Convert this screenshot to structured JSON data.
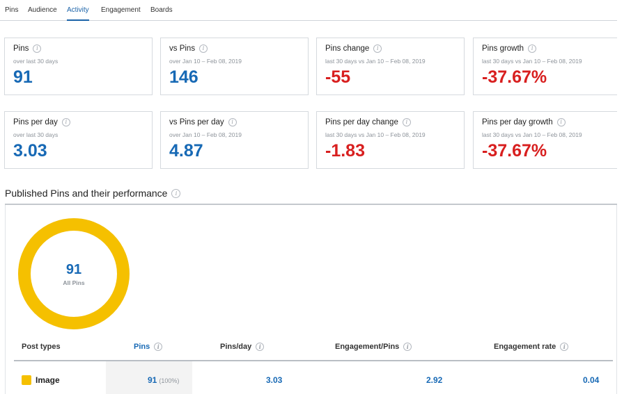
{
  "tabs": [
    {
      "label": "Pins",
      "active": false
    },
    {
      "label": "Audience",
      "active": false
    },
    {
      "label": "Activity",
      "active": true
    },
    {
      "label": "Engagement",
      "active": false
    },
    {
      "label": "Boards",
      "active": false
    }
  ],
  "cards_row1": [
    {
      "title": "Pins",
      "sub": "over last 30 days",
      "value": "91",
      "tone": "blue"
    },
    {
      "title": "vs Pins",
      "sub": "over Jan 10 – Feb 08, 2019",
      "value": "146",
      "tone": "blue"
    },
    {
      "title": "Pins change",
      "sub": "last 30 days vs Jan 10 – Feb 08, 2019",
      "value": "-55",
      "tone": "red"
    },
    {
      "title": "Pins growth",
      "sub": "last 30 days vs Jan 10 – Feb 08, 2019",
      "value": "-37.67%",
      "tone": "red"
    }
  ],
  "cards_row2": [
    {
      "title": "Pins per day",
      "sub": "over last 30 days",
      "value": "3.03",
      "tone": "blue"
    },
    {
      "title": "vs Pins per day",
      "sub": "over Jan 10 – Feb 08, 2019",
      "value": "4.87",
      "tone": "blue"
    },
    {
      "title": "Pins per day change",
      "sub": "last 30 days vs Jan 10 – Feb 08, 2019",
      "value": "-1.83",
      "tone": "red"
    },
    {
      "title": "Pins per day growth",
      "sub": "last 30 days vs Jan 10 – Feb 08, 2019",
      "value": "-37.67%",
      "tone": "red"
    }
  ],
  "info_glyph": "i",
  "section": {
    "title": "Published Pins and their performance"
  },
  "donut": {
    "value": "91",
    "label": "All Pins",
    "color": "#f5c000",
    "share": 1.0
  },
  "table": {
    "headers": {
      "post_types": "Post types",
      "pins": "Pins",
      "pins_day": "Pins/day",
      "engagement_pins": "Engagement/Pins",
      "engagement_rate": "Engagement rate"
    },
    "rows": [
      {
        "type": "Image",
        "pins": "91",
        "pins_pct": "(100%)",
        "pins_day": "3.03",
        "engagement_pins": "2.92",
        "engagement_rate": "0.04",
        "color": "#f5c000"
      }
    ]
  },
  "colors": {
    "accent_blue": "#1769b5",
    "negative_red": "#d81f1f",
    "donut_yellow": "#f5c000"
  }
}
